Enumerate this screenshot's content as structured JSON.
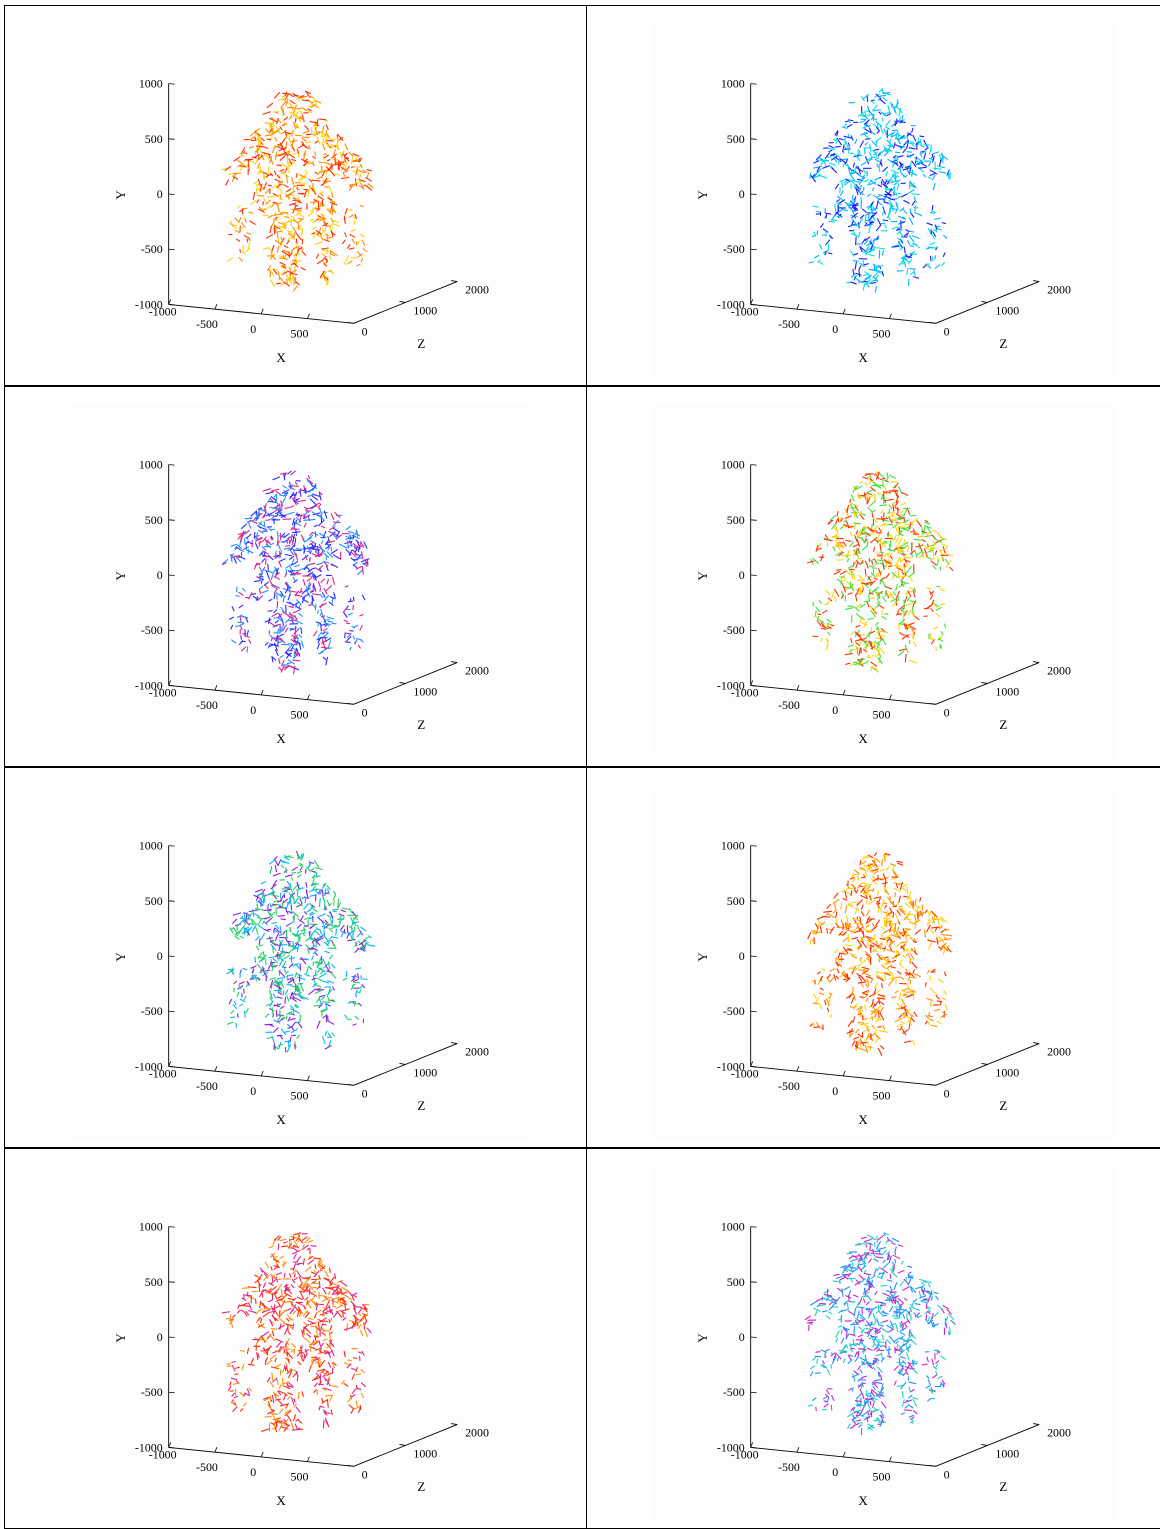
{
  "chart_data": [
    {
      "type": "scatter",
      "xlabel": "X",
      "ylabel": "Y",
      "zlabel": "Z",
      "xlim": [
        -1000,
        1000
      ],
      "ylim": [
        -1000,
        1000
      ],
      "zlim": [
        0,
        2000
      ],
      "xticks": [
        "-1000",
        "-500",
        "0",
        "500"
      ],
      "yticks": [
        "-1000",
        "-500",
        "0",
        "500",
        "1000"
      ],
      "zticks": [
        "0",
        "1000",
        "2000"
      ],
      "dominant_colors": [
        "#ff2a00",
        "#ff8c00",
        "#ffd200"
      ]
    },
    {
      "type": "scatter",
      "xlabel": "X",
      "ylabel": "Y",
      "zlabel": "Z",
      "xlim": [
        -1000,
        1000
      ],
      "ylim": [
        -1000,
        1000
      ],
      "zlim": [
        0,
        2000
      ],
      "xticks": [
        "-1000",
        "-500",
        "0",
        "500"
      ],
      "yticks": [
        "-1000",
        "-500",
        "0",
        "500",
        "1000"
      ],
      "zticks": [
        "0",
        "1000",
        "2000"
      ],
      "dominant_colors": [
        "#00b4ff",
        "#1a1aff",
        "#00e0e0"
      ]
    },
    {
      "type": "scatter",
      "xlabel": "X",
      "ylabel": "Y",
      "zlabel": "Z",
      "xlim": [
        -1000,
        1000
      ],
      "ylim": [
        -1000,
        1000
      ],
      "zlim": [
        0,
        2000
      ],
      "xticks": [
        "-1000",
        "-500",
        "0",
        "500"
      ],
      "yticks": [
        "-1000",
        "-500",
        "0",
        "500",
        "1000"
      ],
      "zticks": [
        "0",
        "1000",
        "2000"
      ],
      "dominant_colors": [
        "#1e90ff",
        "#2a2aff",
        "#e0208c"
      ]
    },
    {
      "type": "scatter",
      "xlabel": "X",
      "ylabel": "Y",
      "zlabel": "Z",
      "xlim": [
        -1000,
        1000
      ],
      "ylim": [
        -1000,
        1000
      ],
      "zlim": [
        0,
        2000
      ],
      "xticks": [
        "-1000",
        "-500",
        "0",
        "500"
      ],
      "yticks": [
        "-1000",
        "-500",
        "0",
        "500",
        "1000"
      ],
      "zticks": [
        "0",
        "1000",
        "2000"
      ],
      "dominant_colors": [
        "#ffd200",
        "#ff3000",
        "#40e040"
      ]
    },
    {
      "type": "scatter",
      "xlabel": "X",
      "ylabel": "Y",
      "zlabel": "Z",
      "xlim": [
        -1000,
        1000
      ],
      "ylim": [
        -1000,
        1000
      ],
      "zlim": [
        0,
        2000
      ],
      "xticks": [
        "-1000",
        "-500",
        "0",
        "500"
      ],
      "yticks": [
        "-1000",
        "-500",
        "0",
        "500",
        "1000"
      ],
      "zticks": [
        "0",
        "1000",
        "2000"
      ],
      "dominant_colors": [
        "#20d060",
        "#00b4ff",
        "#8a20e0"
      ]
    },
    {
      "type": "scatter",
      "xlabel": "X",
      "ylabel": "Y",
      "zlabel": "Z",
      "xlim": [
        -1000,
        1000
      ],
      "ylim": [
        -1000,
        1000
      ],
      "zlim": [
        0,
        2000
      ],
      "xticks": [
        "-1000",
        "-500",
        "0",
        "500"
      ],
      "yticks": [
        "-1000",
        "-500",
        "0",
        "500",
        "1000"
      ],
      "zticks": [
        "0",
        "1000",
        "2000"
      ],
      "dominant_colors": [
        "#ff2a00",
        "#ff9000",
        "#ffd200"
      ]
    },
    {
      "type": "scatter",
      "xlabel": "X",
      "ylabel": "Y",
      "zlabel": "Z",
      "xlim": [
        -1000,
        1000
      ],
      "ylim": [
        -1000,
        1000
      ],
      "zlim": [
        0,
        2000
      ],
      "xticks": [
        "-1000",
        "-500",
        "0",
        "500"
      ],
      "yticks": [
        "-1000",
        "-500",
        "0",
        "500",
        "1000"
      ],
      "zticks": [
        "0",
        "1000",
        "2000"
      ],
      "dominant_colors": [
        "#ff2a00",
        "#ff9000",
        "#e0208c"
      ]
    },
    {
      "type": "scatter",
      "xlabel": "X",
      "ylabel": "Y",
      "zlabel": "Z",
      "xlim": [
        -1000,
        1000
      ],
      "ylim": [
        -1000,
        1000
      ],
      "zlim": [
        0,
        2000
      ],
      "xticks": [
        "-1000",
        "-500",
        "0",
        "500"
      ],
      "yticks": [
        "-1000",
        "-500",
        "0",
        "500",
        "1000"
      ],
      "zticks": [
        "0",
        "1000",
        "2000"
      ],
      "dominant_colors": [
        "#1e90ff",
        "#d020d0",
        "#20d0c0"
      ]
    }
  ]
}
